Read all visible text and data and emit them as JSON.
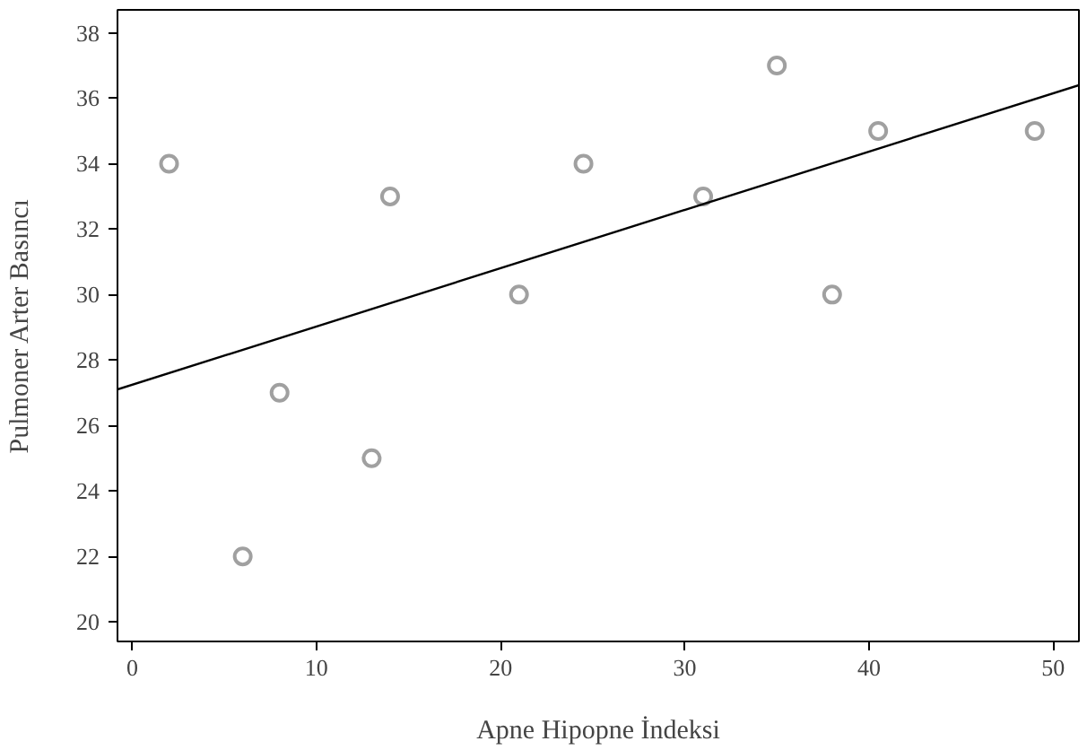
{
  "chart_data": {
    "type": "scatter",
    "xlabel": "Apne Hipopne İndeksi",
    "ylabel": "Pulmoner Arter Basıncı",
    "xlim": [
      -0.8,
      51.4
    ],
    "ylim": [
      19.4,
      38.7
    ],
    "xticks": [
      0,
      10,
      20,
      30,
      40,
      50
    ],
    "yticks": [
      20,
      22,
      24,
      26,
      28,
      30,
      32,
      34,
      36,
      38
    ],
    "grid": false,
    "series": [
      {
        "marker": "circle",
        "color": "#a0a0a0",
        "x": [
          2,
          6,
          8,
          13,
          14,
          21,
          24.5,
          31,
          35,
          38,
          40.5,
          49
        ],
        "values": [
          34,
          22,
          27,
          25,
          33,
          30,
          34,
          33,
          37,
          30,
          35,
          35
        ]
      },
      {
        "type": "line",
        "color": "#000000",
        "x": [
          -0.8,
          51.4
        ],
        "values": [
          27.1,
          36.4
        ]
      }
    ]
  }
}
